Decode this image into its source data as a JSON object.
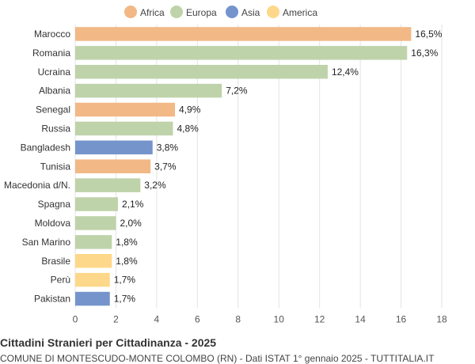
{
  "chart_data": {
    "type": "bar",
    "orientation": "horizontal",
    "title": "Cittadini Stranieri per Cittadinanza - 2025",
    "subtitle": "COMUNE DI MONTESCUDO-MONTE COLOMBO (RN) - Dati ISTAT 1° gennaio 2025 - TUTTITALIA.IT",
    "xlim": [
      0,
      18
    ],
    "xticks": [
      0,
      2,
      4,
      6,
      8,
      10,
      12,
      14,
      16,
      18
    ],
    "grid": "vertical",
    "legend_position": "top",
    "legend": [
      {
        "name": "Africa",
        "color": "#f2b886"
      },
      {
        "name": "Europa",
        "color": "#bfd3aa"
      },
      {
        "name": "Asia",
        "color": "#7494cb"
      },
      {
        "name": "America",
        "color": "#fdd88a"
      }
    ],
    "categories": [
      "Marocco",
      "Romania",
      "Ucraina",
      "Albania",
      "Senegal",
      "Russia",
      "Bangladesh",
      "Tunisia",
      "Macedonia d/N.",
      "Spagna",
      "Moldova",
      "San Marino",
      "Brasile",
      "Perù",
      "Pakistan"
    ],
    "values": [
      16.5,
      16.3,
      12.4,
      7.2,
      4.9,
      4.8,
      3.8,
      3.7,
      3.2,
      2.1,
      2.0,
      1.8,
      1.8,
      1.7,
      1.7
    ],
    "value_labels": [
      "16,5%",
      "16,3%",
      "12,4%",
      "7,2%",
      "4,9%",
      "4,8%",
      "3,8%",
      "3,7%",
      "3,2%",
      "2,1%",
      "2,0%",
      "1,8%",
      "1,8%",
      "1,7%",
      "1,7%"
    ],
    "groups": [
      "Africa",
      "Europa",
      "Europa",
      "Europa",
      "Africa",
      "Europa",
      "Asia",
      "Africa",
      "Europa",
      "Europa",
      "Europa",
      "Europa",
      "America",
      "America",
      "Asia"
    ]
  }
}
